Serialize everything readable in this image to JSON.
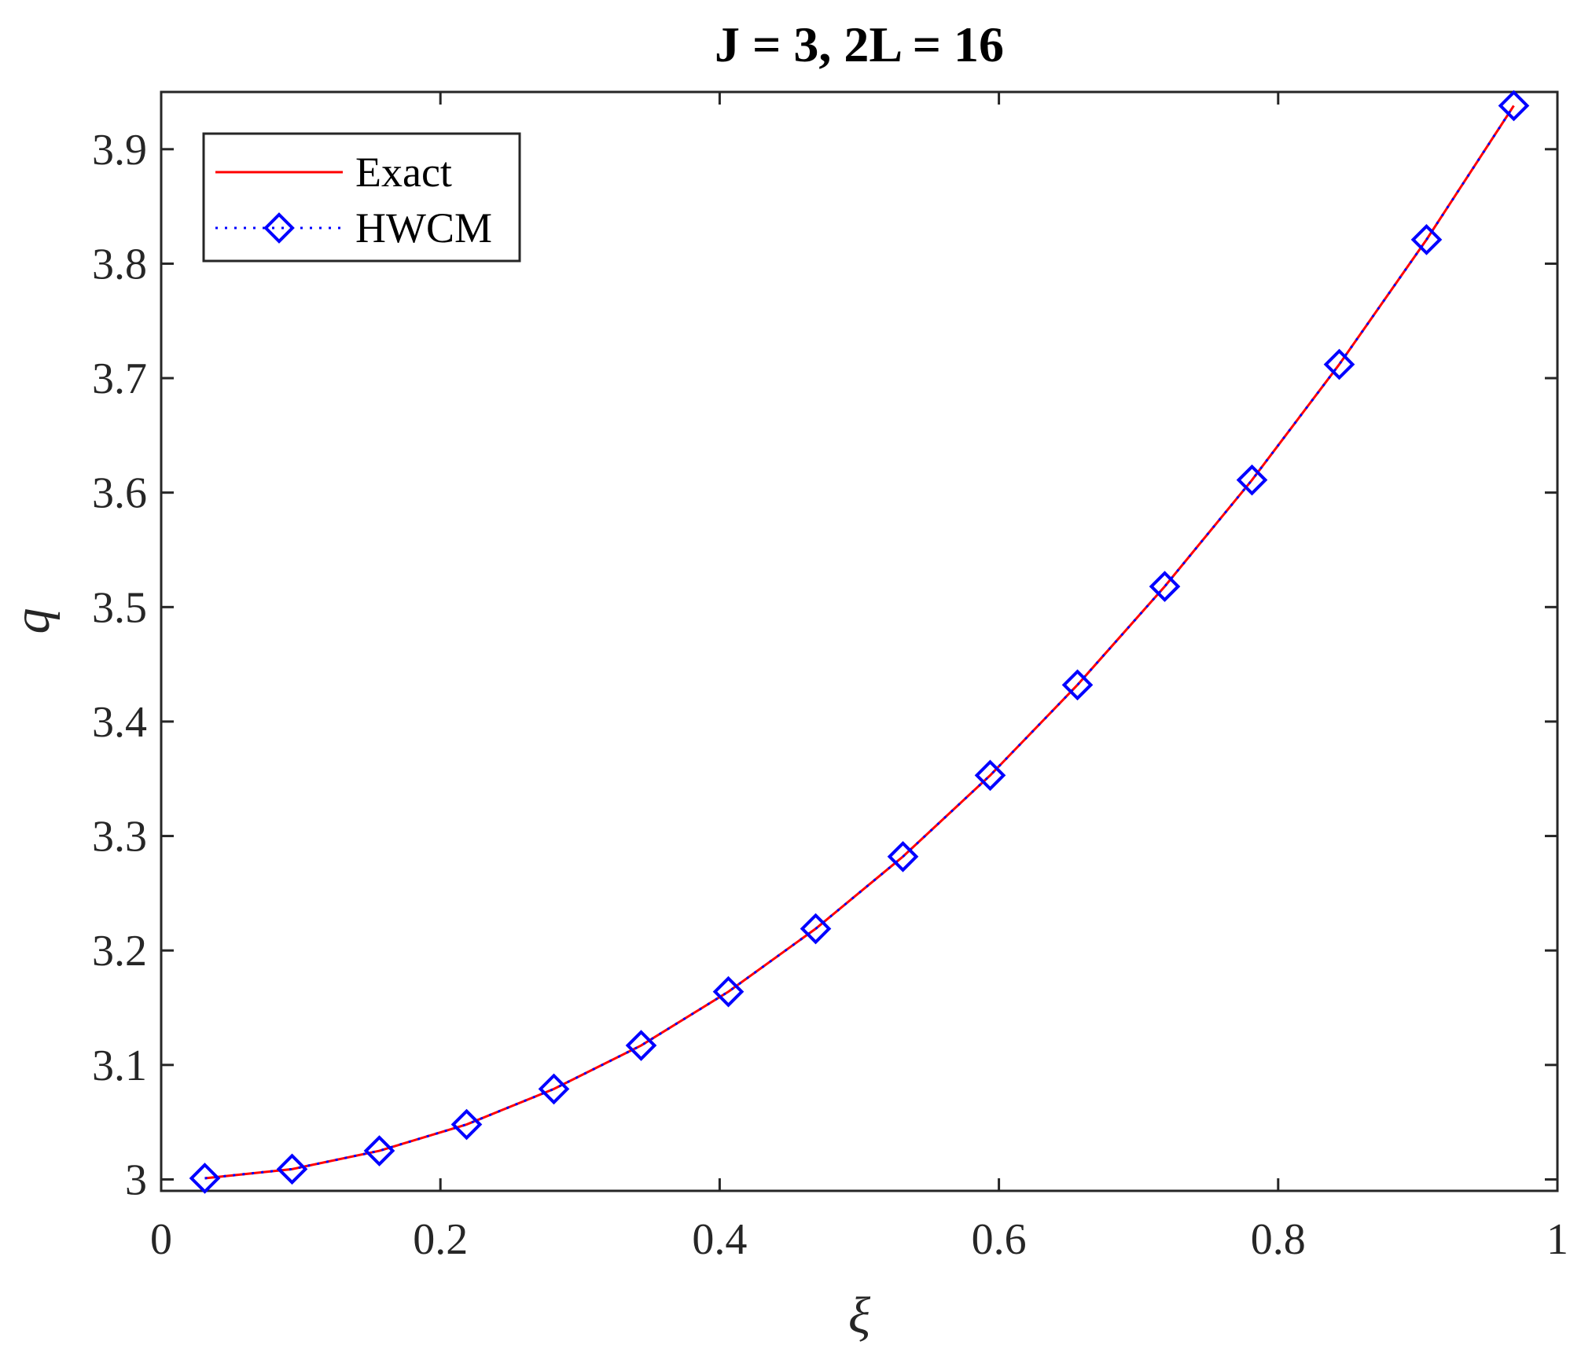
{
  "chart_data": {
    "type": "line",
    "title": "J = 3, 2L = 16",
    "xlabel": "ξ",
    "ylabel": "q",
    "xlim": [
      0,
      1
    ],
    "ylim": [
      2.99,
      3.95
    ],
    "xticks": [
      0,
      0.2,
      0.4,
      0.6,
      0.8,
      1
    ],
    "xtick_labels": [
      "0",
      "0.2",
      "0.4",
      "0.6",
      "0.8",
      "1"
    ],
    "yticks": [
      3,
      3.1,
      3.2,
      3.3,
      3.4,
      3.5,
      3.6,
      3.7,
      3.8,
      3.9
    ],
    "ytick_labels": [
      "3",
      "3.1",
      "3.2",
      "3.3",
      "3.4",
      "3.5",
      "3.6",
      "3.7",
      "3.8",
      "3.9"
    ],
    "grid": false,
    "legend_position": "top-left",
    "x": [
      0.03125,
      0.09375,
      0.15625,
      0.21875,
      0.28125,
      0.34375,
      0.40625,
      0.46875,
      0.53125,
      0.59375,
      0.65625,
      0.71875,
      0.78125,
      0.84375,
      0.90625,
      0.96875
    ],
    "series": [
      {
        "name": "Exact",
        "style": "solid",
        "color": "#ff0000",
        "marker": "none",
        "values": [
          3.001,
          3.009,
          3.025,
          3.048,
          3.079,
          3.117,
          3.164,
          3.219,
          3.282,
          3.353,
          3.432,
          3.518,
          3.611,
          3.712,
          3.821,
          3.938
        ]
      },
      {
        "name": "HWCM",
        "style": "dotted",
        "color": "#0000ff",
        "marker": "diamond",
        "values": [
          3.001,
          3.009,
          3.025,
          3.048,
          3.079,
          3.117,
          3.164,
          3.219,
          3.282,
          3.353,
          3.432,
          3.518,
          3.611,
          3.712,
          3.821,
          3.938
        ]
      }
    ]
  }
}
